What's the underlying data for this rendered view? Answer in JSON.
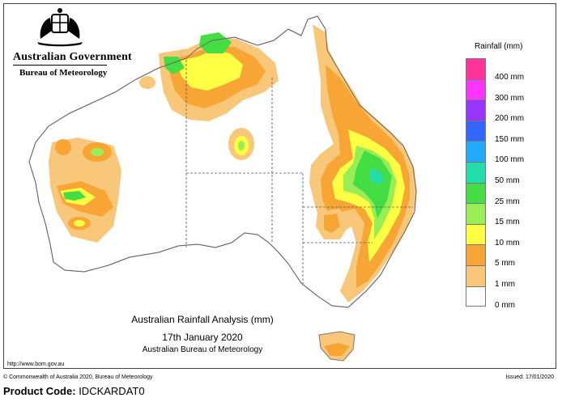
{
  "header": {
    "government": "Australian Government",
    "bureau": "Bureau of Meteorology"
  },
  "legend": {
    "title": "Rainfall (mm)",
    "items": [
      {
        "label": "400 mm",
        "color": "#ff3399"
      },
      {
        "label": "300 mm",
        "color": "#ff33ff"
      },
      {
        "label": "200 mm",
        "color": "#9933ff"
      },
      {
        "label": "150 mm",
        "color": "#3366ff"
      },
      {
        "label": "100 mm",
        "color": "#22aaff"
      },
      {
        "label": "50 mm",
        "color": "#22ddaa"
      },
      {
        "label": "25 mm",
        "color": "#44dd44"
      },
      {
        "label": "15 mm",
        "color": "#99ee55"
      },
      {
        "label": "10 mm",
        "color": "#ffff44"
      },
      {
        "label": "5 mm",
        "color": "#f7a535"
      },
      {
        "label": "1 mm",
        "color": "#f9c77a"
      },
      {
        "label": "0 mm",
        "color": "#ffffff"
      }
    ]
  },
  "caption": {
    "title": "Australian Rainfall Analysis (mm)",
    "date": "17th January 2020",
    "source": "Australian Bureau of Meteorology"
  },
  "footer": {
    "url": "http://www.bom.gov.au",
    "copyright": "© Commonwealth of Australia 2020, Bureau of Meteorology",
    "issued": "Issued: 17/01/2020",
    "product_label": "Product Code:",
    "product_code": "IDCKARDAT0"
  }
}
